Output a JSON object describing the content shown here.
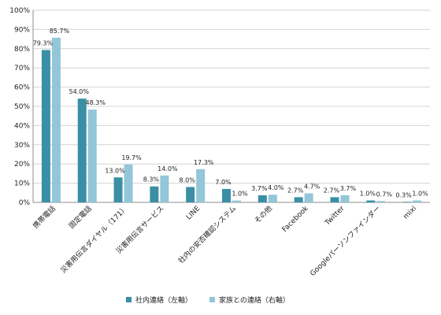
{
  "chart_data": {
    "type": "bar",
    "categories": [
      "携帯電話",
      "固定電話",
      "災害用伝言ダイヤル（171）",
      "災害用伝言サービス",
      "LINE",
      "社内の安否確認システム",
      "その他",
      "Facebook",
      "Twitter",
      "Googleパーソンファインダー",
      "mixi"
    ],
    "series": [
      {
        "name": "社内連絡（左軸）",
        "color": "#3a8fa5",
        "values": [
          79.3,
          54.0,
          13.0,
          8.3,
          8.0,
          7.0,
          3.7,
          2.7,
          2.7,
          1.0,
          0.3
        ],
        "labels": [
          "79.3%",
          "54.0%",
          "13.0%",
          "8.3%",
          "8.0%",
          "7.0%",
          "3.7%",
          "2.7%",
          "2.7%",
          "1.0%",
          "0.3%"
        ]
      },
      {
        "name": "家族との連絡（右軸）",
        "color": "#93c6d8",
        "values": [
          85.7,
          48.3,
          19.7,
          14.0,
          17.3,
          1.0,
          4.0,
          4.7,
          3.7,
          0.7,
          1.0
        ],
        "labels": [
          "85.7%",
          "48.3%",
          "19.7%",
          "14.0%",
          "17.3%",
          "1.0%",
          "4.0%",
          "4.7%",
          "3.7%",
          "0.7%",
          "1.0%"
        ]
      }
    ],
    "yticks": [
      "0%",
      "10%",
      "20%",
      "30%",
      "40%",
      "50%",
      "60%",
      "70%",
      "80%",
      "90%",
      "100%"
    ],
    "ylim": [
      0,
      100
    ],
    "grid": true,
    "legend": "bottom"
  }
}
